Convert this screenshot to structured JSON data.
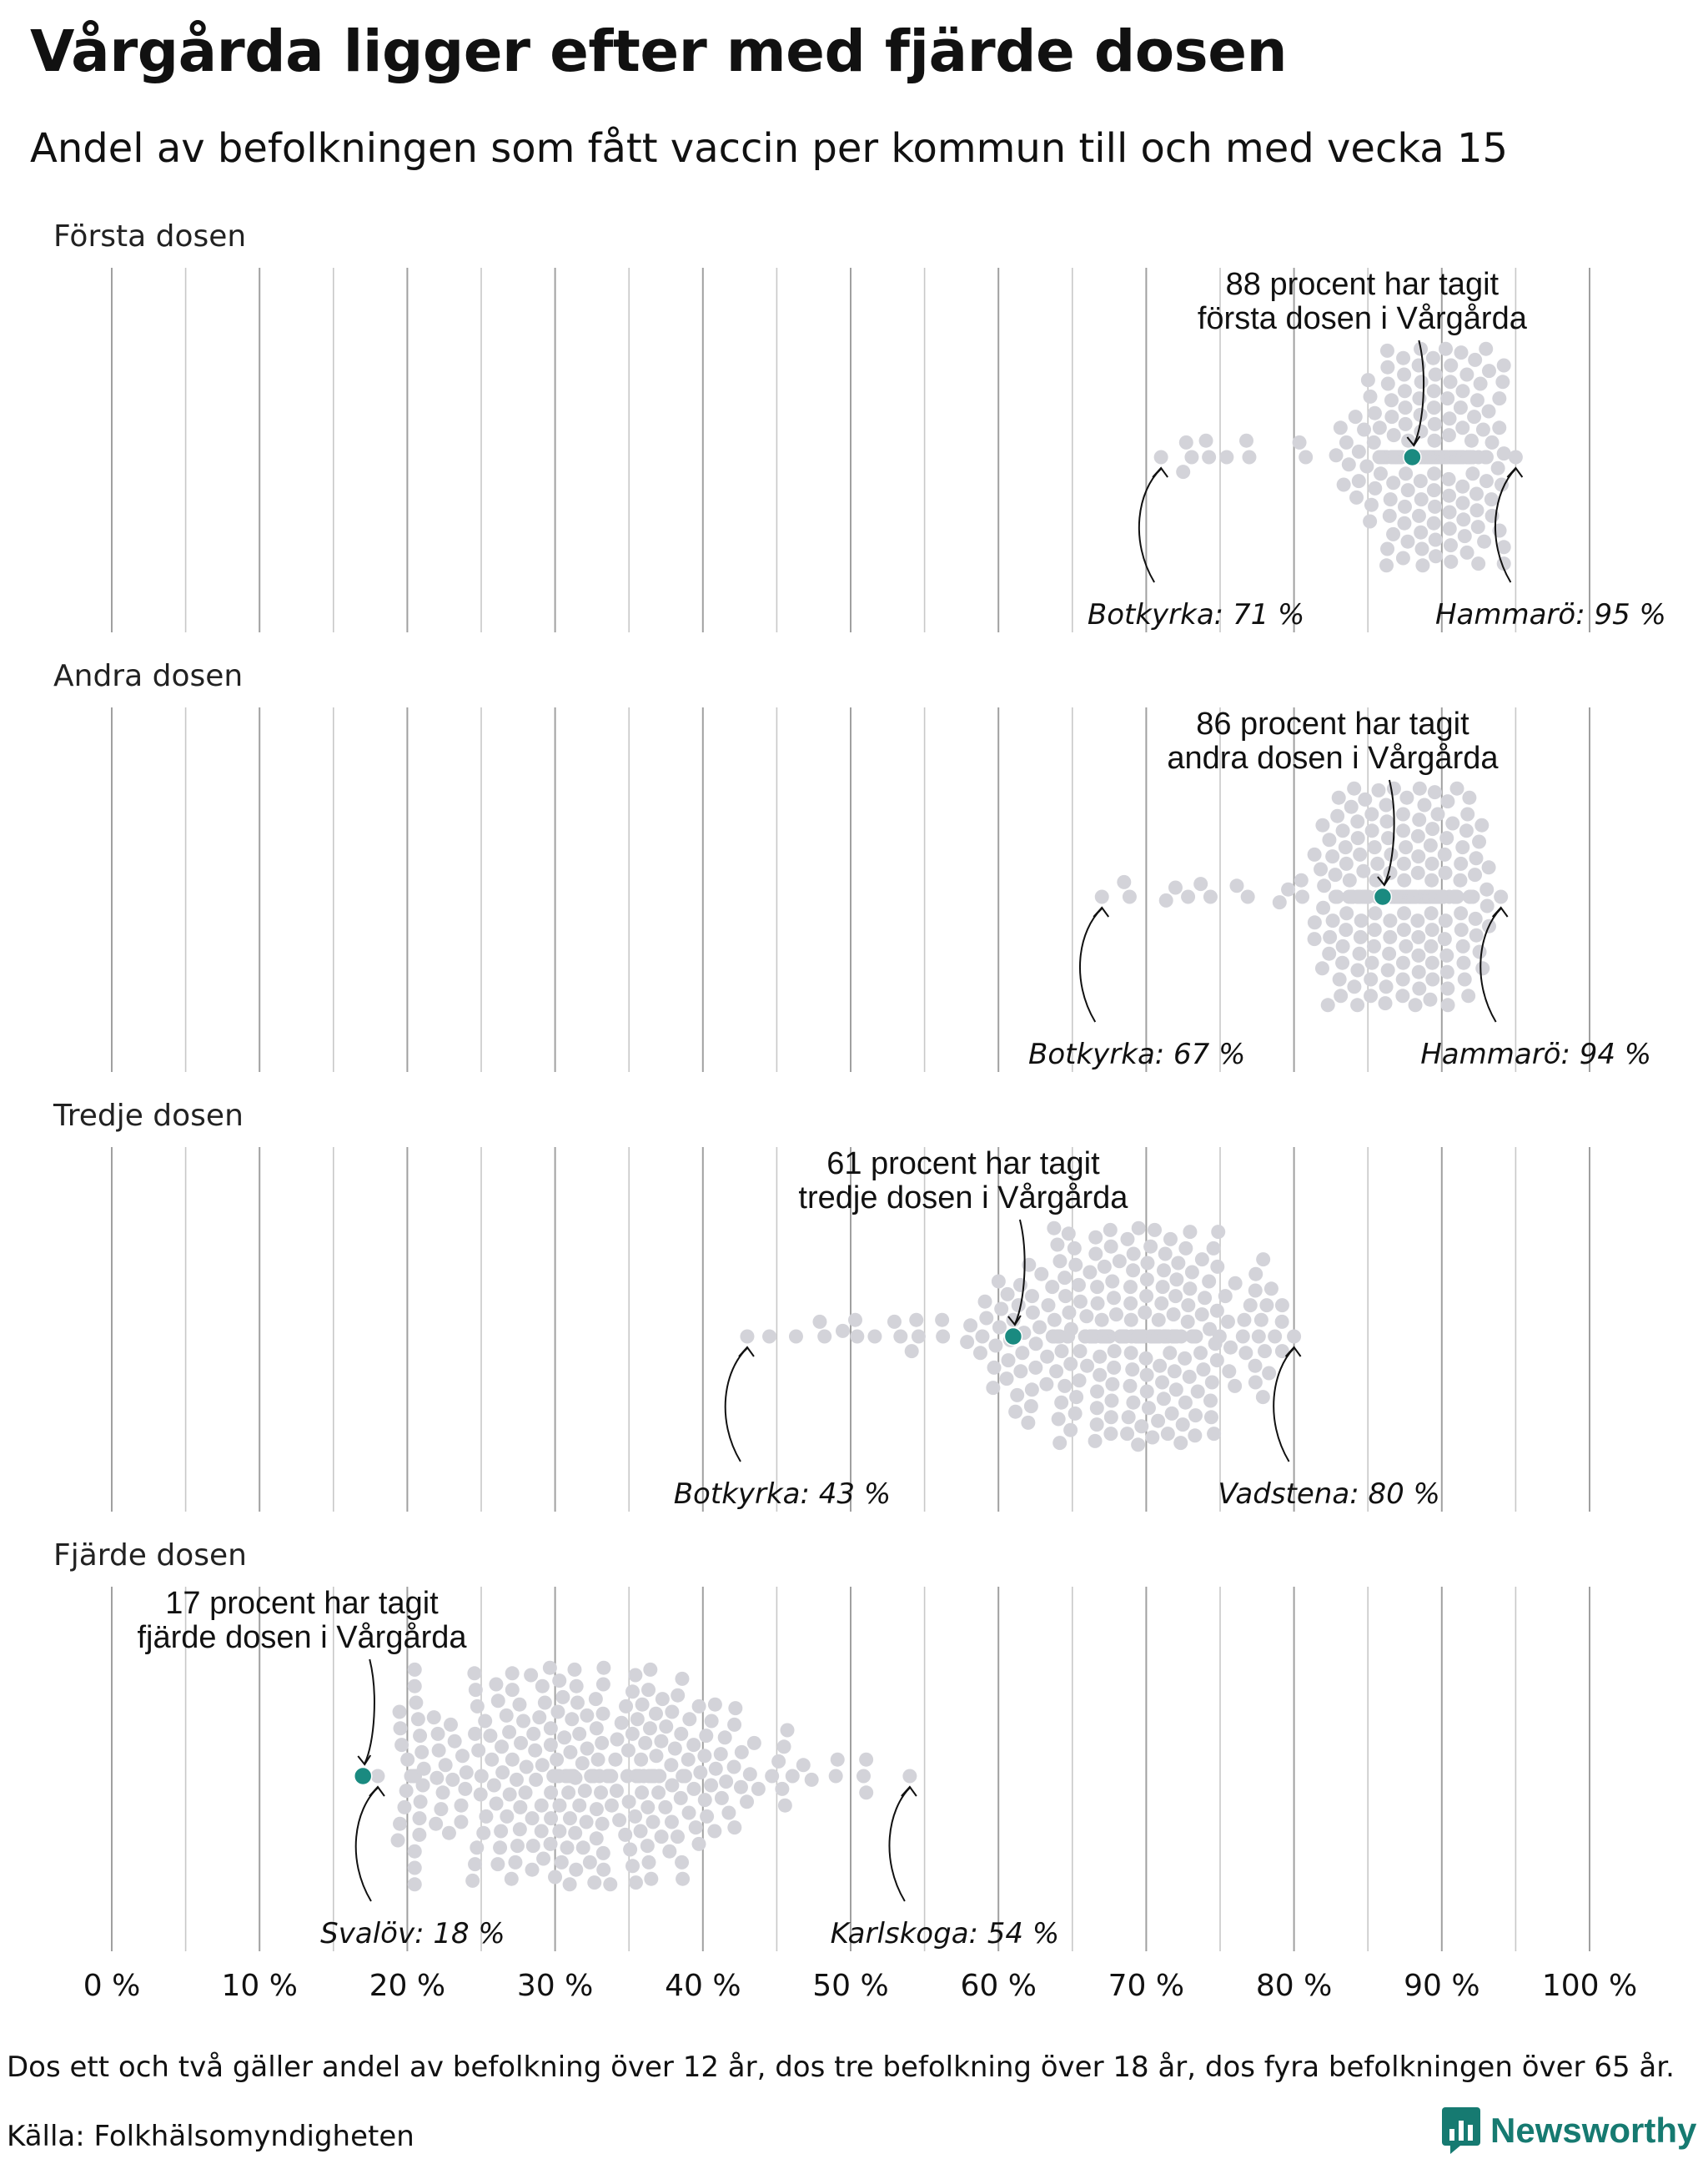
{
  "title": "Vårgårda ligger efter med fjärde dosen",
  "subtitle": "Andel av befolkningen som fått vaccin per kommun till och med vecka 15",
  "note": "Dos ett och två gäller andel av befolkning över 12 år, dos tre befolkning över 18 år, dos fyra befolkningen över 65 år.",
  "source": "Källa: Folkhälsomyndigheten",
  "brand": "Newsworthy",
  "colors": {
    "highlight": "#1a8a80",
    "dots": "#d3d3d9",
    "grid": "#a0a0a0",
    "brand": "#167a71"
  },
  "chart_data": {
    "type": "scatter",
    "subtype": "beeswarm",
    "x_ticks": [
      "0 %",
      "10 %",
      "20 %",
      "30 %",
      "40 %",
      "50 %",
      "60 %",
      "70 %",
      "80 %",
      "90 %",
      "100 %"
    ],
    "xlim": [
      0,
      100
    ],
    "panels": [
      {
        "label": "Första dosen",
        "highlight": {
          "municipality": "Vårgårda",
          "value": 88,
          "annotation": [
            "88 procent har tagit",
            "första dosen i Vårgårda"
          ]
        },
        "min": {
          "label": "Botkyrka: 71 %",
          "value": 71
        },
        "max": {
          "label": "Hammarö: 95 %",
          "value": 95
        },
        "distribution": {
          "center": 89.5,
          "spread": 2.2
        }
      },
      {
        "label": "Andra dosen",
        "highlight": {
          "municipality": "Vårgårda",
          "value": 86,
          "annotation": [
            "86 procent har tagit",
            "andra dosen i Vårgårda"
          ]
        },
        "min": {
          "label": "Botkyrka: 67 %",
          "value": 67
        },
        "max": {
          "label": "Hammarö: 94 %",
          "value": 94
        },
        "distribution": {
          "center": 87.5,
          "spread": 2.8
        }
      },
      {
        "label": "Tredje dosen",
        "highlight": {
          "municipality": "Vårgårda",
          "value": 61,
          "annotation": [
            "61 procent har tagit",
            "tredje dosen i Vårgårda"
          ]
        },
        "min": {
          "label": "Botkyrka: 43 %",
          "value": 43
        },
        "max": {
          "label": "Vadstena: 80 %",
          "value": 80
        },
        "distribution": {
          "center": 69,
          "spread": 4.8
        }
      },
      {
        "label": "Fjärde dosen",
        "highlight": {
          "municipality": "Vårgårda",
          "value": 17,
          "annotation": [
            "17 procent har tagit",
            "fjärde dosen i Vårgårda"
          ]
        },
        "min": {
          "label": "Svalöv: 18 %",
          "value": 18
        },
        "max": {
          "label": "Karlskoga: 54 %",
          "value": 54
        },
        "distribution": {
          "center": 33,
          "spread": 6.5
        }
      }
    ]
  }
}
